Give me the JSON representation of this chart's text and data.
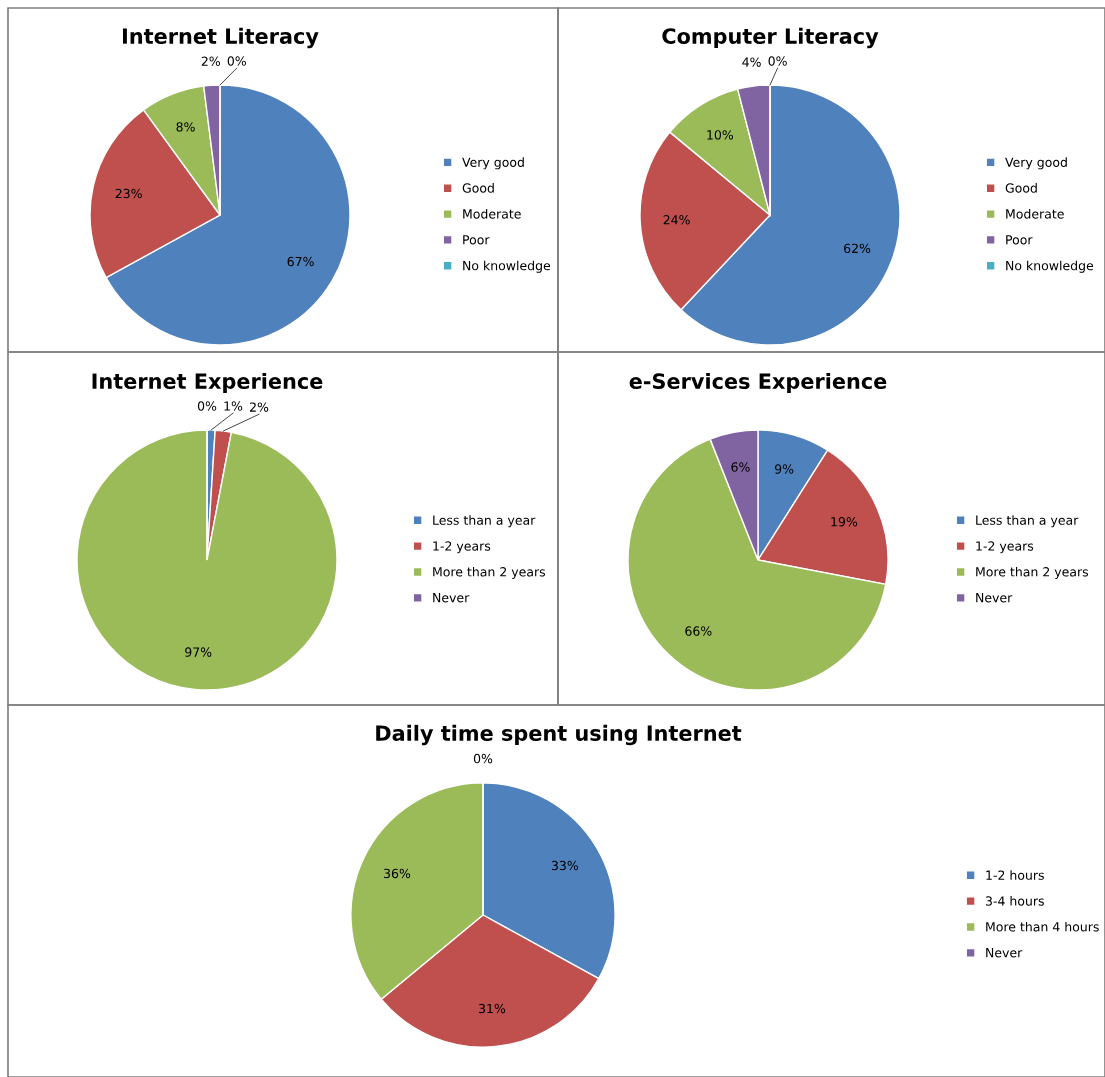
{
  "chart_data": [
    {
      "type": "pie",
      "title": "Internet Literacy",
      "categories": [
        "Very good",
        "Good",
        "Moderate",
        "Poor",
        "No knowledge"
      ],
      "values": [
        67,
        23,
        8,
        2,
        0
      ],
      "value_labels": [
        "67%",
        "23%",
        "8%",
        "2%",
        "0%"
      ],
      "colors": [
        "#4f81bd",
        "#c0504d",
        "#9bbb59",
        "#8064a2",
        "#4bacc6"
      ],
      "legend": "right"
    },
    {
      "type": "pie",
      "title": "Computer Literacy",
      "categories": [
        "Very good",
        "Good",
        "Moderate",
        "Poor",
        "No knowledge"
      ],
      "values": [
        62,
        24,
        10,
        4,
        0
      ],
      "value_labels": [
        "62%",
        "24%",
        "10%",
        "4%",
        "0%"
      ],
      "colors": [
        "#4f81bd",
        "#c0504d",
        "#9bbb59",
        "#8064a2",
        "#4bacc6"
      ],
      "legend": "right"
    },
    {
      "type": "pie",
      "title": "Internet Experience",
      "categories": [
        "Less than a year",
        "1-2 years",
        "More than 2 years",
        "Never"
      ],
      "values": [
        1,
        2,
        97,
        0
      ],
      "value_labels": [
        "1%",
        "2%",
        "97%",
        "0%"
      ],
      "colors": [
        "#4f81bd",
        "#c0504d",
        "#9bbb59",
        "#8064a2"
      ],
      "legend": "right"
    },
    {
      "type": "pie",
      "title": "e-Services Experience",
      "categories": [
        "Less than a year",
        "1-2 years",
        "More than 2 years",
        "Never"
      ],
      "values": [
        9,
        19,
        66,
        6
      ],
      "value_labels": [
        "9%",
        "19%",
        "66%",
        "6%"
      ],
      "colors": [
        "#4f81bd",
        "#c0504d",
        "#9bbb59",
        "#8064a2"
      ],
      "legend": "right"
    },
    {
      "type": "pie",
      "title": "Daily time spent using Internet",
      "categories": [
        "1-2 hours",
        "3-4 hours",
        "More than 4 hours",
        "Never"
      ],
      "values": [
        33,
        31,
        36,
        0
      ],
      "value_labels": [
        "33%",
        "31%",
        "36%",
        "0%"
      ],
      "colors": [
        "#4f81bd",
        "#c0504d",
        "#9bbb59",
        "#8064a2"
      ],
      "legend": "right"
    }
  ]
}
